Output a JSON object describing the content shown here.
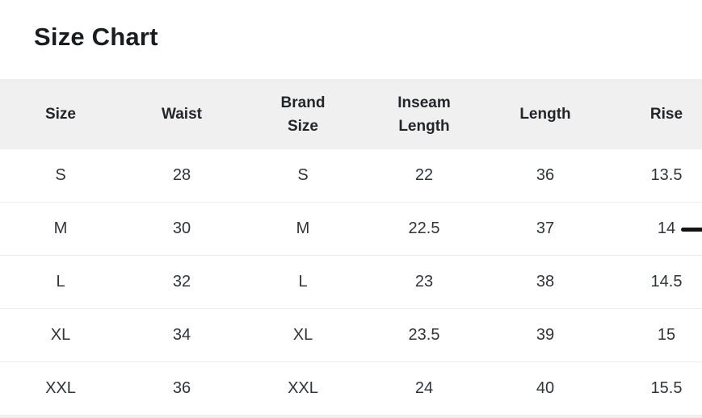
{
  "page": {
    "title": "Size Chart"
  },
  "table": {
    "columns": [
      "Size",
      "Waist",
      "Brand Size",
      "Inseam Length",
      "Length",
      "Rise"
    ],
    "rows": [
      [
        "S",
        "28",
        "S",
        "22",
        "36",
        "13.5"
      ],
      [
        "M",
        "30",
        "M",
        "22.5",
        "37",
        "14"
      ],
      [
        "L",
        "32",
        "L",
        "23",
        "38",
        "14.5"
      ],
      [
        "XL",
        "34",
        "XL",
        "23.5",
        "39",
        "15"
      ],
      [
        "XXL",
        "36",
        "XXL",
        "24",
        "40",
        "15.5"
      ]
    ]
  },
  "colors": {
    "header_background": "#f0f0f1",
    "title_text": "#1a1c1e",
    "header_text": "#232528",
    "cell_text": "#303338",
    "divider": "#ececee",
    "dash_marker": "#141414"
  }
}
